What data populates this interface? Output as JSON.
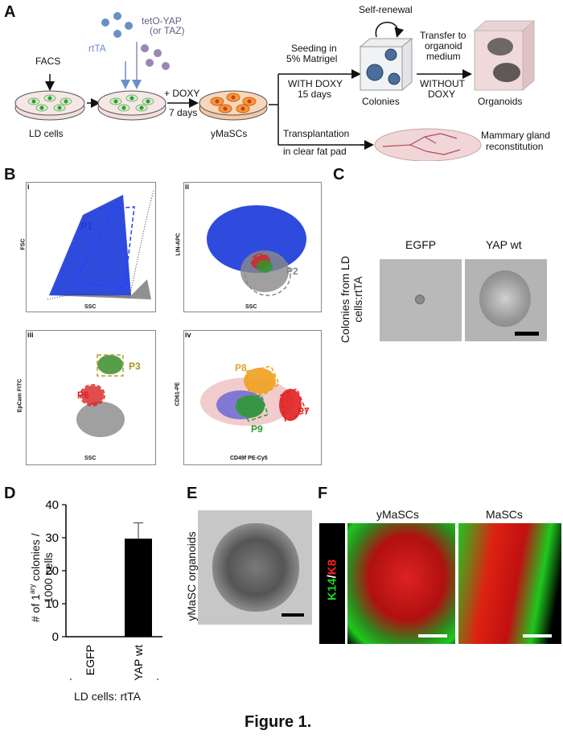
{
  "panels": {
    "a": "A",
    "b": "B",
    "c": "C",
    "d": "D",
    "e": "E",
    "f": "F"
  },
  "panel_a": {
    "facs": "FACS",
    "rtta": "rtTA",
    "teto_yap": "tetO-YAP",
    "or_taz": "(or TAZ)",
    "doxy_plus": "+ DOXY",
    "seven_days": "7 days",
    "ld_cells": "LD cells",
    "ymascs": "yMaSCs",
    "self_renewal": "Self-renewal",
    "seeding_1": "Seeding in",
    "seeding_2": "5% Matrigel",
    "with_doxy": "WITH DOXY",
    "fifteen_days": "15 days",
    "colonies": "Colonies",
    "transfer_1": "Transfer to",
    "transfer_2": "organoid",
    "transfer_3": "medium",
    "without_1": "WITHOUT",
    "without_2": "DOXY",
    "organoids": "Organoids",
    "transplant_1": "Transplantation",
    "transplant_2": "in clear fat pad",
    "mammary_1": "Mammary gland",
    "mammary_2": "reconstitution"
  },
  "panel_b": {
    "sub_i": "i",
    "sub_ii": "ii",
    "sub_iii": "iii",
    "sub_iv": "iv",
    "i_y": "FSC",
    "i_x": "SSC",
    "gate_p1": "P1",
    "ii_y": "LIN-APC",
    "ii_x": "SSC",
    "gate_p2": "P2",
    "iii_y": "EpCam FITC",
    "iii_x": "SSC",
    "gate_p3": "P3",
    "gate_p6": "P6",
    "iv_y": "CD61-PE",
    "iv_x": "CD49f PE-Cy5",
    "gate_p7": "P7",
    "gate_p8": "P8",
    "gate_p9": "P9"
  },
  "panel_c": {
    "ylabel_1": "Colonies from LD",
    "ylabel_2": "cells:rtTA",
    "col_egfp": "EGFP",
    "col_yap": "YAP wt"
  },
  "chart_data": {
    "type": "bar",
    "categories": [
      "EGFP",
      "YAP wt"
    ],
    "values": [
      0,
      29.7
    ],
    "error": [
      0,
      4.8
    ],
    "ylim": [
      0,
      40
    ],
    "yticks": [
      0,
      10,
      20,
      30,
      40
    ],
    "ylabel": "# of 1ary colonies / 1000 cells",
    "group_label": "LD cells: rtTA",
    "bar_color": "#000000"
  },
  "panel_d_text": {
    "ylabel_pre": "# of 1",
    "ylabel_sup": "ary",
    "ylabel_post": " colonies /",
    "ylabel_2": "1000 cells",
    "group_label": "LD cells: rtTA"
  },
  "panel_e": {
    "ylabel": "yMaSC organoids"
  },
  "panel_f": {
    "k14": "K14",
    "slash": "/",
    "k8": "K8",
    "col_ymascs": "yMaSCs",
    "col_mascs": "MaSCs"
  },
  "caption": "Figure 1."
}
